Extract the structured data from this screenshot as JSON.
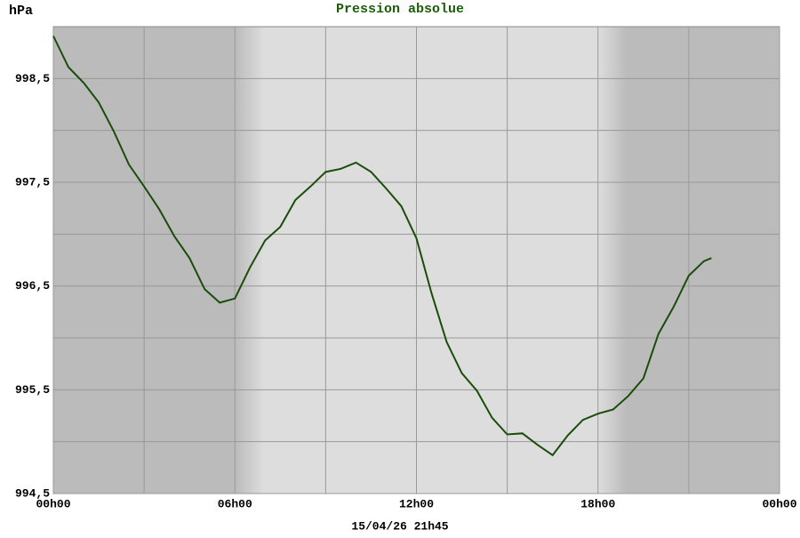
{
  "chart_data": {
    "type": "line",
    "title": "Pression absolue",
    "y_label": "hPa",
    "footer": "15/04/26 21h45",
    "x": [
      0,
      0.5,
      1,
      1.5,
      2,
      2.5,
      3,
      3.5,
      4,
      4.5,
      5,
      5.5,
      6,
      6.5,
      7,
      7.5,
      8,
      8.5,
      9,
      9.5,
      10,
      10.5,
      11,
      11.5,
      12,
      12.5,
      13,
      13.5,
      14,
      14.5,
      15,
      15.5,
      16,
      16.5,
      17,
      17.5,
      18,
      18.5,
      19,
      19.5,
      20,
      20.5,
      21,
      21.5,
      21.75
    ],
    "series": [
      {
        "name": "Pression absolue",
        "color": "#1a4d0a",
        "values": [
          998.91,
          998.61,
          998.46,
          998.27,
          997.99,
          997.67,
          997.46,
          997.24,
          996.98,
          996.77,
          996.47,
          996.34,
          996.38,
          996.68,
          996.94,
          997.07,
          997.33,
          997.46,
          997.6,
          997.63,
          997.69,
          997.6,
          997.44,
          997.27,
          996.96,
          996.43,
          995.96,
          995.66,
          995.49,
          995.23,
          995.07,
          995.08,
          994.97,
          994.87,
          995.06,
          995.21,
          995.27,
          995.31,
          995.44,
          995.61,
          996.04,
          996.3,
          996.6,
          996.74,
          996.77
        ]
      }
    ],
    "xlim": [
      0,
      24
    ],
    "xticks": [
      {
        "value": 0,
        "label": "00h00"
      },
      {
        "value": 6,
        "label": "06h00"
      },
      {
        "value": 12,
        "label": "12h00"
      },
      {
        "value": 18,
        "label": "18h00"
      },
      {
        "value": 24,
        "label": "00h00"
      }
    ],
    "xminor": [
      3,
      9,
      15,
      21
    ],
    "ylim": [
      994.5,
      999
    ],
    "yticks": [
      {
        "value": 994.5,
        "label": "994,5"
      },
      {
        "value": 995.5,
        "label": "995,5"
      },
      {
        "value": 996.5,
        "label": "996,5"
      },
      {
        "value": 997.5,
        "label": "997,5"
      },
      {
        "value": 998.5,
        "label": "998,5"
      }
    ],
    "yminor": [
      995,
      996,
      997,
      998
    ],
    "grid": true
  }
}
